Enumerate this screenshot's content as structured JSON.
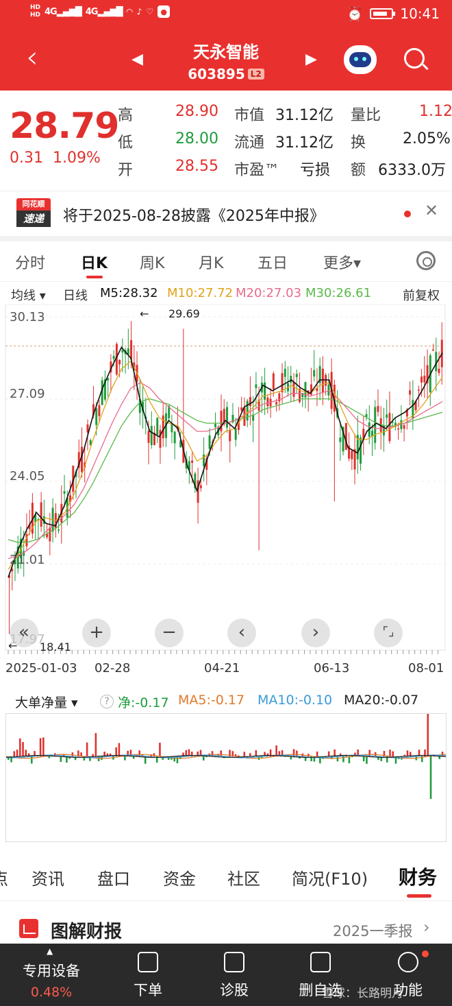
{
  "status_bar": {
    "left": {
      "hd1": "HD",
      "hd2": "HD",
      "net1": "4G",
      "net2": "4G"
    },
    "time": "10:41"
  },
  "header": {
    "title": "天永智能",
    "code": "603895",
    "level_badge": "L2",
    "back_icon": "chevron-left",
    "prev_icon": "triangle-left",
    "next_icon": "triangle-right",
    "assistant_icon": "robot",
    "search_icon": "search"
  },
  "quote": {
    "price": "28.79",
    "change": "0.31",
    "change_pct": "1.09%",
    "high_label": "高",
    "high": "28.90",
    "low_label": "低",
    "low": "28.00",
    "open_label": "开",
    "open": "28.55",
    "mktcap_label": "市值",
    "mktcap": "31.12亿",
    "float_label": "流通",
    "float": "31.12亿",
    "pe_label": "市盈™",
    "pe": "亏损",
    "volratio_label": "量比",
    "volratio": "1.12",
    "turnover_label": "换",
    "turnover": "2.05%",
    "amount_label": "额",
    "amount": "6333.0万"
  },
  "notice": {
    "badge_top": "同花顺",
    "badge_bottom": "速递",
    "text": "将于2025-08-28披露《2025年中报》"
  },
  "period_tabs": [
    "分时",
    "日K",
    "周K",
    "月K",
    "五日",
    "更多▾"
  ],
  "active_period": "日K",
  "ma_legend": {
    "mode": "均线 ▾",
    "type": "日线",
    "m5": "M5:28.32",
    "m10": "M10:27.72",
    "m20": "M20:27.03",
    "m30": "M30:26.61",
    "adjust": "前复权"
  },
  "colors": {
    "up": "#e0302d",
    "down": "#1e9b3c",
    "m5": "#111111",
    "m10": "#e0a21a",
    "m20": "#e86b8a",
    "m30": "#5ab84a",
    "brand": "#e8312f"
  },
  "chart_data": {
    "type": "candlestick",
    "y_ticks": [
      "30.13",
      "27.09",
      "24.05",
      "21.01",
      "17.97"
    ],
    "ylim": [
      17.97,
      30.13
    ],
    "x_ticks": [
      "2025-01-03",
      "02-28",
      "04-21",
      "06-13",
      "08-01"
    ],
    "annotations": {
      "max": "29.69",
      "min": "18.41"
    },
    "reference_line": 29.05,
    "ma5": [
      20.5,
      21.5,
      22.3,
      22.9,
      22.5,
      22.4,
      23.2,
      24.2,
      25.2,
      26.5,
      27.5,
      28.3,
      29.0,
      28.6,
      27.0,
      25.9,
      25.7,
      26.3,
      26.0,
      24.6,
      23.7,
      24.8,
      25.8,
      26.3,
      26.0,
      26.8,
      27.0,
      27.6,
      27.4,
      27.6,
      27.8,
      27.5,
      27.3,
      27.8,
      27.8,
      26.4,
      25.3,
      25.1,
      25.9,
      26.2,
      26.0,
      26.4,
      26.6,
      26.9,
      27.5,
      28.2,
      28.8
    ],
    "ma10": [
      20.8,
      21.3,
      22.0,
      22.6,
      22.7,
      22.6,
      22.9,
      23.6,
      24.5,
      25.6,
      26.6,
      27.5,
      28.2,
      28.5,
      27.8,
      27.0,
      26.4,
      26.2,
      26.1,
      25.5,
      24.8,
      25.0,
      25.5,
      25.9,
      26.0,
      26.5,
      26.8,
      27.2,
      27.3,
      27.4,
      27.6,
      27.4,
      27.3,
      27.6,
      27.7,
      27.0,
      26.2,
      25.6,
      25.6,
      25.8,
      25.9,
      26.1,
      26.3,
      26.5,
      26.9,
      27.4,
      27.9
    ],
    "ma20": [
      21.2,
      21.3,
      21.5,
      21.8,
      22.2,
      22.5,
      22.8,
      23.2,
      23.8,
      24.6,
      25.4,
      26.2,
      26.9,
      27.5,
      27.7,
      27.5,
      27.1,
      26.8,
      26.5,
      26.2,
      25.9,
      25.9,
      26.0,
      26.2,
      26.3,
      26.5,
      26.7,
      26.9,
      27.0,
      27.1,
      27.3,
      27.3,
      27.2,
      27.3,
      27.4,
      27.1,
      26.7,
      26.3,
      26.1,
      26.0,
      26.0,
      26.1,
      26.2,
      26.4,
      26.6,
      26.8,
      27.0
    ],
    "ma30": [
      21.9,
      21.8,
      21.8,
      21.9,
      22.1,
      22.3,
      22.6,
      22.9,
      23.4,
      24.0,
      24.7,
      25.4,
      26.1,
      26.6,
      27.0,
      27.1,
      27.0,
      26.9,
      26.7,
      26.5,
      26.3,
      26.2,
      26.2,
      26.2,
      26.3,
      26.4,
      26.5,
      26.7,
      26.8,
      26.9,
      27.0,
      27.1,
      27.1,
      27.1,
      27.1,
      27.0,
      26.8,
      26.6,
      26.4,
      26.2,
      26.1,
      26.1,
      26.2,
      26.3,
      26.4,
      26.5,
      26.6
    ]
  },
  "controls": [
    "«",
    "+",
    "−",
    "‹",
    "›",
    "⌜⌟"
  ],
  "indicator": {
    "name": "大单净量 ▾",
    "help": "?",
    "net": "净:-0.17",
    "ma5": "MA5:-0.17",
    "ma10": "MA10:-0.10",
    "ma20": "MA20:-0.07"
  },
  "info_tabs": [
    "点",
    "资讯",
    "盘口",
    "资金",
    "社区",
    "简况(F10)",
    "财务"
  ],
  "active_info_tab": "财务",
  "finance": {
    "title": "图解财报",
    "report": "2025一季报"
  },
  "bottom_bar": {
    "device_label": "专用设备",
    "device_pct": "0.48%",
    "items": [
      "下单",
      "诊股",
      "删自选",
      "功能"
    ]
  },
  "watermark": "雪球：长路明月"
}
